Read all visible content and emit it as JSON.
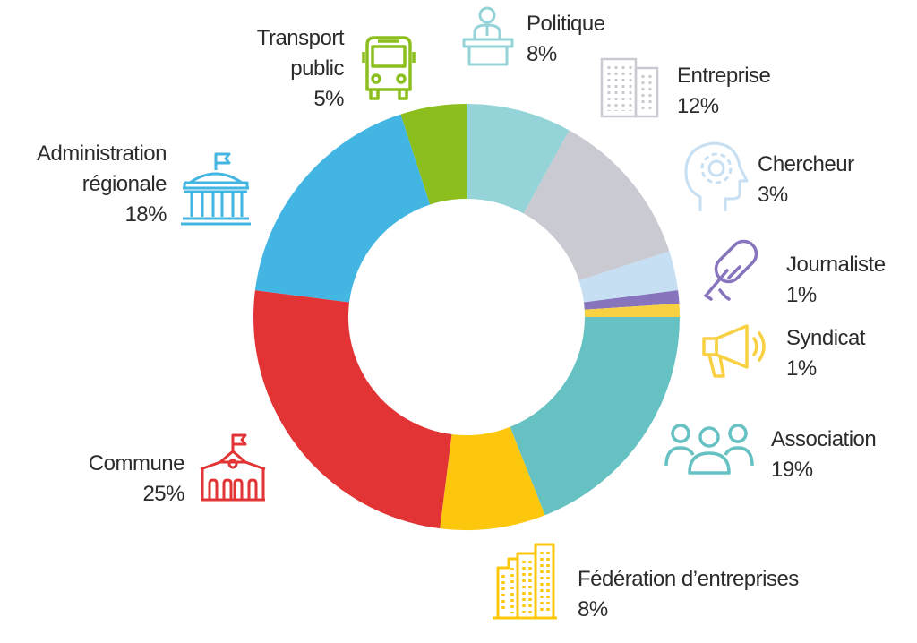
{
  "chart_data": {
    "type": "pie",
    "donut": true,
    "title": "",
    "slices": [
      {
        "label_lines": [
          "Politique"
        ],
        "value": 8,
        "value_label": "8%",
        "color": "#94d3d7",
        "icon": "podium-speaker-icon"
      },
      {
        "label_lines": [
          "Entreprise"
        ],
        "value": 12,
        "value_label": "12%",
        "color": "#cacad2",
        "icon": "office-building-icon"
      },
      {
        "label_lines": [
          "Chercheur"
        ],
        "value": 3,
        "value_label": "3%",
        "color": "#c6dff2",
        "icon": "head-gear-icon"
      },
      {
        "label_lines": [
          "Journaliste"
        ],
        "value": 1,
        "value_label": "1%",
        "color": "#8774bd",
        "icon": "microphone-icon"
      },
      {
        "label_lines": [
          "Syndicat"
        ],
        "value": 1,
        "value_label": "1%",
        "color": "#f8d143",
        "icon": "megaphone-icon"
      },
      {
        "label_lines": [
          "Association"
        ],
        "value": 19,
        "value_label": "19%",
        "color": "#66c1c3",
        "icon": "people-group-icon"
      },
      {
        "label_lines": [
          "Fédération d’entreprises"
        ],
        "value": 8,
        "value_label": "8%",
        "color": "#fdc70d",
        "icon": "city-buildings-icon"
      },
      {
        "label_lines": [
          "Commune"
        ],
        "value": 25,
        "value_label": "25%",
        "color": "#e23335",
        "icon": "town-hall-icon"
      },
      {
        "label_lines": [
          "Administration",
          "régionale"
        ],
        "value": 18,
        "value_label": "18%",
        "color": "#43b5e2",
        "icon": "government-building-icon"
      },
      {
        "label_lines": [
          "Transport",
          "public"
        ],
        "value": 5,
        "value_label": "5%",
        "color": "#8cbe1d",
        "icon": "bus-icon"
      }
    ],
    "legend": "none"
  }
}
